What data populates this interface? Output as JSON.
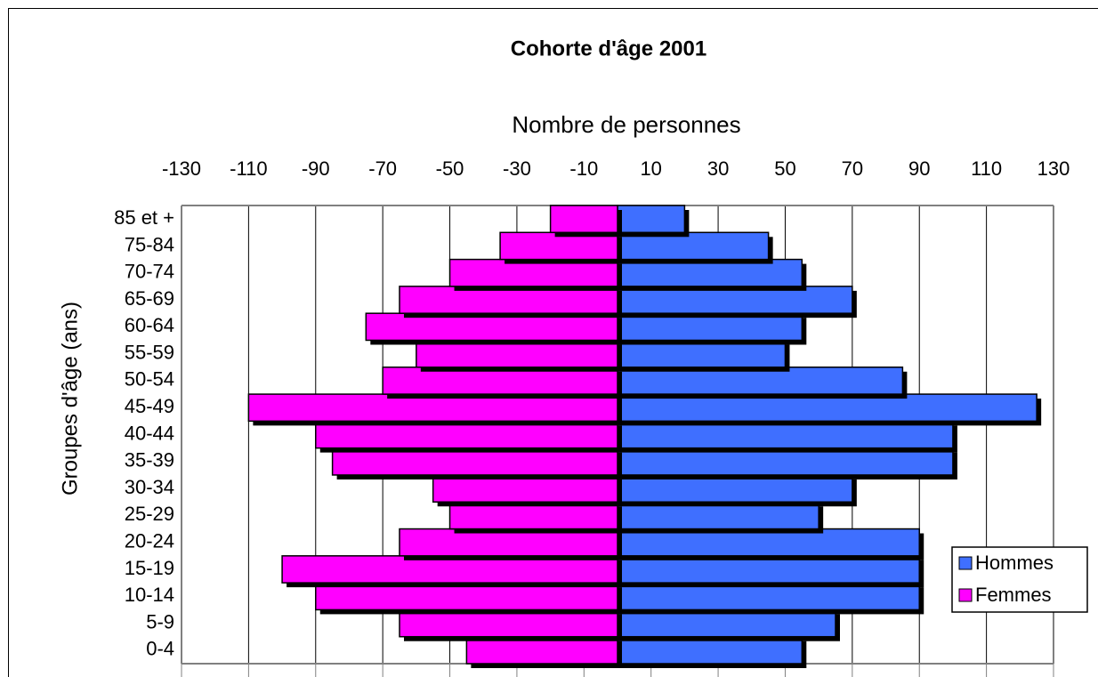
{
  "chart_data": {
    "type": "pyramid",
    "title": "Cohorte d'âge 2001",
    "x_label": "Nombre de personnes",
    "y_label": "Groupes d'âge (ans)",
    "categories": [
      "0-4",
      "5-9",
      "10-14",
      "15-19",
      "20-24",
      "25-29",
      "30-34",
      "35-39",
      "40-44",
      "45-49",
      "50-54",
      "55-59",
      "60-64",
      "65-69",
      "70-74",
      "75-84",
      "85 et +"
    ],
    "series": [
      {
        "name": "Hommes",
        "color": "#3f6fff",
        "values": [
          55,
          65,
          90,
          90,
          90,
          60,
          70,
          100,
          100,
          125,
          85,
          50,
          55,
          70,
          55,
          45,
          20
        ]
      },
      {
        "name": "Femmes",
        "color": "#ff00ff",
        "values": [
          -45,
          -65,
          -90,
          -100,
          -65,
          -50,
          -55,
          -85,
          -90,
          -110,
          -70,
          -60,
          -75,
          -65,
          -50,
          -35,
          -20
        ]
      }
    ],
    "xlim": [
      -130,
      130
    ],
    "xticks": [
      -130,
      -110,
      -90,
      -70,
      -50,
      -30,
      -10,
      10,
      30,
      50,
      70,
      90,
      110,
      130
    ],
    "grid": true,
    "legend": "lower-right"
  }
}
